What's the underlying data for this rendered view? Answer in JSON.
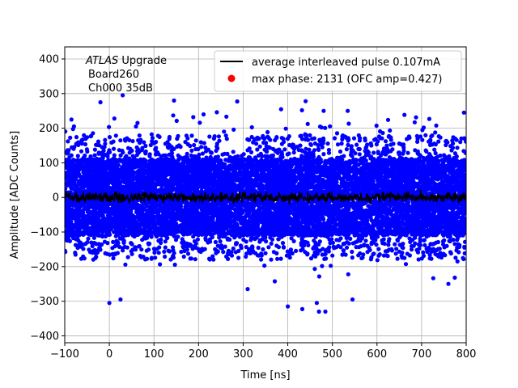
{
  "chart_data": {
    "type": "scatter",
    "title": "",
    "xlabel": "Time [ns]",
    "ylabel": "Amplitude [ADC Counts]",
    "xlim": [
      -100,
      800
    ],
    "ylim": [
      -420,
      435
    ],
    "xticks": [
      -100,
      0,
      100,
      200,
      300,
      400,
      500,
      600,
      700,
      800
    ],
    "yticks": [
      -400,
      -300,
      -200,
      -100,
      0,
      100,
      200,
      300,
      400
    ],
    "grid": true,
    "legend_position": "top-right",
    "annotation": {
      "italic_prefix": "ATLAS",
      "line1_rest": " Upgrade",
      "line2": "Board260",
      "line3": "Ch000 35dB"
    },
    "series": [
      {
        "name": "average interleaved pulse 0.107mA",
        "kind": "line",
        "color": "#000000",
        "description_values": {
          "mean": 0,
          "noise_amplitude": 15
        }
      },
      {
        "name": "max phase: 2131 (OFC amp=0.427)",
        "kind": "scatter",
        "color": "#0000ff",
        "legend_marker_color": "#ff0000",
        "bulk_range": [
          -110,
          110
        ],
        "outlier_range": [
          -330,
          300
        ],
        "sample_outliers": [
          {
            "x": 30,
            "y": 295
          },
          {
            "x": -20,
            "y": 275
          },
          {
            "x": 145,
            "y": 280
          },
          {
            "x": 440,
            "y": 278
          },
          {
            "x": 385,
            "y": 255
          },
          {
            "x": 795,
            "y": 245
          },
          {
            "x": -85,
            "y": 225
          },
          {
            "x": 0,
            "y": -305
          },
          {
            "x": 25,
            "y": -295
          },
          {
            "x": 470,
            "y": -330
          },
          {
            "x": 465,
            "y": -305
          },
          {
            "x": 310,
            "y": -265
          },
          {
            "x": 545,
            "y": -295
          },
          {
            "x": 400,
            "y": -315
          },
          {
            "x": 760,
            "y": -250
          }
        ]
      }
    ]
  }
}
